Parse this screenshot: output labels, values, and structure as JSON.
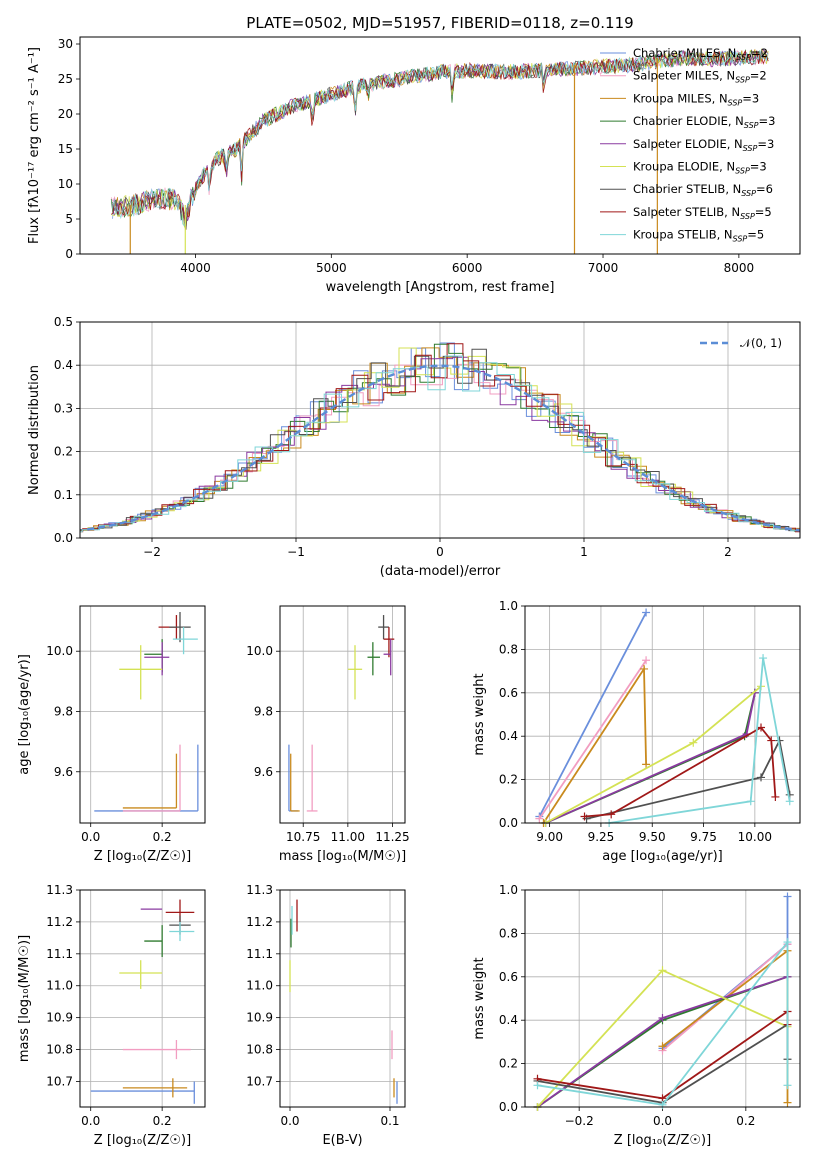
{
  "title": "PLATE=0502, MJD=51957, FIBERID=0118, z=0.119",
  "colors": {
    "chabrier_miles": "#6a8fdc",
    "salpeter_miles": "#f29dc1",
    "kroupa_miles": "#c98a1e",
    "chabrier_elodie": "#2f7a2f",
    "salpeter_elodie": "#8a3aa0",
    "kroupa_elodie": "#d4e254",
    "chabrier_stelib": "#505050",
    "salpeter_stelib": "#a01818",
    "kroupa_stelib": "#7fd6d8"
  },
  "chart_data": [
    {
      "id": "spectrum",
      "type": "line",
      "title": "PLATE=0502, MJD=51957, FIBERID=0118, z=0.119",
      "xlabel": "wavelength [Angstrom, rest frame]",
      "ylabel": "Flux [fλ10⁻¹⁷ erg cm⁻² s⁻¹ A⁻¹]",
      "xlim": [
        3150,
        8450
      ],
      "ylim": [
        0,
        31
      ],
      "xticks": [
        4000,
        5000,
        6000,
        7000,
        8000
      ],
      "yticks": [
        0,
        5,
        10,
        15,
        20,
        25,
        30
      ],
      "grid": false,
      "legend_position": "top-right",
      "legend": [
        {
          "label": "Chabrier MILES, N",
          "sub": "SSP",
          "tail": "=2",
          "color": "#6a8fdc"
        },
        {
          "label": "Salpeter MILES, N",
          "sub": "SSP",
          "tail": "=2",
          "color": "#f29dc1"
        },
        {
          "label": "Kroupa MILES, N",
          "sub": "SSP",
          "tail": "=3",
          "color": "#c98a1e"
        },
        {
          "label": "Chabrier ELODIE, N",
          "sub": "SSP",
          "tail": "=3",
          "color": "#2f7a2f"
        },
        {
          "label": "Salpeter ELODIE, N",
          "sub": "SSP",
          "tail": "=3",
          "color": "#8a3aa0"
        },
        {
          "label": "Kroupa ELODIE, N",
          "sub": "SSP",
          "tail": "=3",
          "color": "#d4e254"
        },
        {
          "label": "Chabrier STELIB, N",
          "sub": "SSP",
          "tail": "=6",
          "color": "#505050"
        },
        {
          "label": "Salpeter STELIB, N",
          "sub": "SSP",
          "tail": "=5",
          "color": "#a01818"
        },
        {
          "label": "Kroupa STELIB, N",
          "sub": "SSP",
          "tail": "=5",
          "color": "#7fd6d8"
        }
      ],
      "continuum": [
        [
          3380,
          6.6
        ],
        [
          3550,
          7
        ],
        [
          3700,
          8
        ],
        [
          3850,
          7.8
        ],
        [
          3930,
          5
        ],
        [
          3970,
          8
        ],
        [
          4050,
          11
        ],
        [
          4150,
          13.5
        ],
        [
          4300,
          15
        ],
        [
          4500,
          19
        ],
        [
          4700,
          21
        ],
        [
          4860,
          22
        ],
        [
          5000,
          22.8
        ],
        [
          5200,
          24
        ],
        [
          5500,
          25
        ],
        [
          5800,
          26
        ],
        [
          6000,
          26.2
        ],
        [
          6300,
          26
        ],
        [
          6600,
          26.3
        ],
        [
          6800,
          26.5
        ],
        [
          7000,
          26.8
        ],
        [
          7200,
          27
        ],
        [
          7400,
          27.5
        ],
        [
          7600,
          28
        ],
        [
          7800,
          27.8
        ],
        [
          8000,
          28
        ],
        [
          8200,
          28.2
        ]
      ],
      "drops": [
        {
          "x": 3520,
          "from": 7,
          "to": 0,
          "color": "#c98a1e"
        },
        {
          "x": 3925,
          "from": 7,
          "to": 0,
          "color": "#d4e254"
        },
        {
          "x": 6790,
          "from": 27,
          "to": 0,
          "color": "#c98a1e"
        },
        {
          "x": 7400,
          "from": 28,
          "to": 0,
          "color": "#c98a1e"
        }
      ]
    },
    {
      "id": "residuals",
      "type": "step",
      "xlabel": "(data-model)/error",
      "ylabel": "Normed distribution",
      "xlim": [
        -2.5,
        2.5
      ],
      "ylim": [
        0,
        0.5
      ],
      "xticks": [
        -2,
        -1,
        0,
        1,
        2
      ],
      "yticks": [
        0.0,
        0.1,
        0.2,
        0.3,
        0.4,
        0.5
      ],
      "grid": true,
      "legend_position": "top-right",
      "reference_label": "𝒩(0, 1)",
      "reference_color": "#5b8dd6"
    },
    {
      "id": "age_vs_Z",
      "type": "errorbar",
      "xlabel": "Z [log₁₀(Z/Z☉)]",
      "ylabel": "age  [log₁₀(age/yr)]",
      "xlim": [
        -0.03,
        0.32
      ],
      "ylim": [
        9.43,
        10.15
      ],
      "xticks": [
        0.0,
        0.2
      ],
      "yticks": [
        9.6,
        9.8,
        10.0
      ],
      "grid": true,
      "points": [
        {
          "x": 0.3,
          "y": 9.47,
          "xerr": [
            0.29,
            0.0
          ],
          "yerr": [
            0.0,
            0.22
          ],
          "color": "#6a8fdc"
        },
        {
          "x": 0.25,
          "y": 9.47,
          "xerr": [
            0.16,
            0.0
          ],
          "yerr": [
            0.0,
            0.22
          ],
          "color": "#f29dc1"
        },
        {
          "x": 0.24,
          "y": 9.48,
          "xerr": [
            0.15,
            0.0
          ],
          "yerr": [
            0.0,
            0.18
          ],
          "color": "#c98a1e"
        },
        {
          "x": 0.24,
          "y": 10.08,
          "xerr": [
            0.05,
            0.0
          ],
          "yerr": [
            0.04,
            0.04
          ],
          "color": "#a01818"
        },
        {
          "x": 0.25,
          "y": 10.08,
          "xerr": [
            0.03,
            0.03
          ],
          "yerr": [
            0.05,
            0.05
          ],
          "color": "#505050"
        },
        {
          "x": 0.26,
          "y": 10.04,
          "xerr": [
            0.03,
            0.04
          ],
          "yerr": [
            0.05,
            0.04
          ],
          "color": "#7fd6d8"
        },
        {
          "x": 0.2,
          "y": 9.99,
          "xerr": [
            0.05,
            0.0
          ],
          "yerr": [
            0.06,
            0.05
          ],
          "color": "#2f7a2f"
        },
        {
          "x": 0.2,
          "y": 9.98,
          "xerr": [
            0.05,
            0.02
          ],
          "yerr": [
            0.06,
            0.05
          ],
          "color": "#8a3aa0"
        },
        {
          "x": 0.14,
          "y": 9.94,
          "xerr": [
            0.06,
            0.06
          ],
          "yerr": [
            0.1,
            0.08
          ],
          "color": "#d4e254"
        }
      ]
    },
    {
      "id": "age_vs_mass",
      "type": "errorbar",
      "xlabel": "mass [log₁₀(M/M☉)]",
      "ylabel": "",
      "xlim": [
        10.62,
        11.32
      ],
      "ylim": [
        9.43,
        10.15
      ],
      "xticks": [
        10.75,
        11.0,
        11.25
      ],
      "yticks": [
        9.6,
        9.8,
        10.0
      ],
      "grid": true,
      "points": [
        {
          "x": 10.67,
          "y": 9.47,
          "xerr": [
            0.0,
            0.05
          ],
          "yerr": [
            0.0,
            0.22
          ],
          "color": "#6a8fdc"
        },
        {
          "x": 10.68,
          "y": 9.47,
          "xerr": [
            0.0,
            0.05
          ],
          "yerr": [
            0.0,
            0.19
          ],
          "color": "#c98a1e"
        },
        {
          "x": 10.8,
          "y": 9.47,
          "xerr": [
            0.03,
            0.03
          ],
          "yerr": [
            0.0,
            0.22
          ],
          "color": "#f29dc1"
        },
        {
          "x": 11.2,
          "y": 10.08,
          "xerr": [
            0.03,
            0.03
          ],
          "yerr": [
            0.04,
            0.04
          ],
          "color": "#505050"
        },
        {
          "x": 11.23,
          "y": 10.04,
          "xerr": [
            0.03,
            0.03
          ],
          "yerr": [
            0.06,
            0.04
          ],
          "color": "#a01818"
        },
        {
          "x": 11.24,
          "y": 9.99,
          "xerr": [
            0.04,
            0.0
          ],
          "yerr": [
            0.07,
            0.05
          ],
          "color": "#8a3aa0"
        },
        {
          "x": 11.14,
          "y": 9.98,
          "xerr": [
            0.03,
            0.04
          ],
          "yerr": [
            0.06,
            0.05
          ],
          "color": "#2f7a2f"
        },
        {
          "x": 11.04,
          "y": 9.94,
          "xerr": [
            0.04,
            0.04
          ],
          "yerr": [
            0.1,
            0.08
          ],
          "color": "#d4e254"
        }
      ]
    },
    {
      "id": "weight_vs_age",
      "type": "line",
      "xlabel": "age  [log₁₀(age/yr)]",
      "ylabel": "mass weight",
      "xlim": [
        8.88,
        10.22
      ],
      "ylim": [
        0,
        1.0
      ],
      "xticks": [
        9.0,
        9.25,
        9.5,
        9.75,
        10.0
      ],
      "yticks": [
        0.0,
        0.2,
        0.4,
        0.6,
        0.8,
        1.0
      ],
      "grid": true,
      "series": [
        {
          "color": "#6a8fdc",
          "x": [
            8.95,
            9.47
          ],
          "y": [
            0.03,
            0.97
          ]
        },
        {
          "color": "#f29dc1",
          "x": [
            8.95,
            9.47
          ],
          "y": [
            0.02,
            0.75
          ]
        },
        {
          "color": "#c98a1e",
          "x": [
            8.97,
            9.46,
            9.47
          ],
          "y": [
            0.0,
            0.71,
            0.27
          ]
        },
        {
          "color": "#2f7a2f",
          "x": [
            8.98,
            9.95,
            10.0
          ],
          "y": [
            0.0,
            0.4,
            0.6
          ]
        },
        {
          "color": "#8a3aa0",
          "x": [
            8.98,
            9.96,
            10.0
          ],
          "y": [
            0.0,
            0.41,
            0.6
          ]
        },
        {
          "color": "#d4e254",
          "x": [
            8.98,
            9.7,
            10.03
          ],
          "y": [
            0.0,
            0.37,
            0.63
          ]
        },
        {
          "color": "#505050",
          "x": [
            9.18,
            10.03,
            10.12,
            10.17
          ],
          "y": [
            0.02,
            0.21,
            0.38,
            0.13
          ]
        },
        {
          "color": "#a01818",
          "x": [
            9.17,
            9.3,
            10.03,
            10.08,
            10.1
          ],
          "y": [
            0.03,
            0.04,
            0.44,
            0.38,
            0.12
          ]
        },
        {
          "color": "#7fd6d8",
          "x": [
            9.29,
            9.98,
            10.04,
            10.17
          ],
          "y": [
            0.0,
            0.1,
            0.76,
            0.1
          ]
        }
      ]
    },
    {
      "id": "mass_vs_Z",
      "type": "errorbar",
      "xlabel": "Z [log₁₀(Z/Z☉)]",
      "ylabel": "mass [log₁₀(M/M☉)]",
      "xlim": [
        -0.03,
        0.32
      ],
      "ylim": [
        10.62,
        11.3
      ],
      "xticks": [
        0.0,
        0.2
      ],
      "yticks": [
        10.7,
        10.8,
        10.9,
        11.0,
        11.1,
        11.2,
        11.3
      ],
      "grid": true,
      "points": [
        {
          "x": 0.29,
          "y": 10.67,
          "xerr": [
            0.29,
            0.0
          ],
          "yerr": [
            0.04,
            0.03
          ],
          "color": "#6a8fdc"
        },
        {
          "x": 0.23,
          "y": 10.68,
          "xerr": [
            0.14,
            0.04
          ],
          "yerr": [
            0.03,
            0.03
          ],
          "color": "#c98a1e"
        },
        {
          "x": 0.24,
          "y": 10.8,
          "xerr": [
            0.15,
            0.04
          ],
          "yerr": [
            0.03,
            0.03
          ],
          "color": "#f29dc1"
        },
        {
          "x": 0.25,
          "y": 11.23,
          "xerr": [
            0.04,
            0.04
          ],
          "yerr": [
            0.03,
            0.04
          ],
          "color": "#a01818"
        },
        {
          "x": 0.25,
          "y": 11.19,
          "xerr": [
            0.03,
            0.03
          ],
          "yerr": [
            0.03,
            0.03
          ],
          "color": "#505050"
        },
        {
          "x": 0.25,
          "y": 11.17,
          "xerr": [
            0.03,
            0.04
          ],
          "yerr": [
            0.03,
            0.03
          ],
          "color": "#7fd6d8"
        },
        {
          "x": 0.2,
          "y": 11.24,
          "xerr": [
            0.06,
            0.0
          ],
          "yerr": [
            0.0,
            0.0
          ],
          "color": "#8a3aa0"
        },
        {
          "x": 0.2,
          "y": 11.14,
          "xerr": [
            0.05,
            0.0
          ],
          "yerr": [
            0.05,
            0.05
          ],
          "color": "#2f7a2f"
        },
        {
          "x": 0.14,
          "y": 11.04,
          "xerr": [
            0.06,
            0.06
          ],
          "yerr": [
            0.05,
            0.04
          ],
          "color": "#d4e254"
        }
      ]
    },
    {
      "id": "mass_vs_ebv",
      "type": "errorbar",
      "xlabel": "E(B-V)",
      "ylabel": "",
      "xlim": [
        -0.01,
        0.115
      ],
      "ylim": [
        10.62,
        11.3
      ],
      "xticks": [
        0.0,
        0.1
      ],
      "yticks": [
        10.7,
        10.8,
        10.9,
        11.0,
        11.1,
        11.2,
        11.3
      ],
      "grid": true,
      "points": [
        {
          "x": 0.107,
          "y": 10.67,
          "xerr": [
            0,
            0
          ],
          "yerr": [
            0.04,
            0.03
          ],
          "color": "#6a8fdc"
        },
        {
          "x": 0.104,
          "y": 10.68,
          "xerr": [
            0,
            0
          ],
          "yerr": [
            0.03,
            0.03
          ],
          "color": "#c98a1e"
        },
        {
          "x": 0.102,
          "y": 10.81,
          "xerr": [
            0,
            0
          ],
          "yerr": [
            0.04,
            0.05
          ],
          "color": "#f29dc1"
        },
        {
          "x": 0.007,
          "y": 11.22,
          "xerr": [
            0,
            0
          ],
          "yerr": [
            0.05,
            0.05
          ],
          "color": "#a01818"
        },
        {
          "x": 0.001,
          "y": 11.17,
          "xerr": [
            0,
            0
          ],
          "yerr": [
            0.05,
            0.04
          ],
          "color": "#2f7a2f"
        },
        {
          "x": 0.002,
          "y": 11.2,
          "xerr": [
            0,
            0
          ],
          "yerr": [
            0.04,
            0.05
          ],
          "color": "#7fd6d8"
        },
        {
          "x": 0.0,
          "y": 11.04,
          "xerr": [
            0,
            0
          ],
          "yerr": [
            0.06,
            0.04
          ],
          "color": "#d4e254"
        }
      ]
    },
    {
      "id": "weight_vs_Z",
      "type": "line",
      "xlabel": "Z [log₁₀(Z/Z☉)]",
      "ylabel": "mass weight",
      "xlim": [
        -0.33,
        0.33
      ],
      "ylim": [
        0,
        1.0
      ],
      "xticks": [
        -0.2,
        0.0,
        0.2
      ],
      "yticks": [
        0.0,
        0.2,
        0.4,
        0.6,
        0.8,
        1.0
      ],
      "grid": true,
      "series": [
        {
          "color": "#6a8fdc",
          "x": [
            0.0,
            0.3,
            0.3
          ],
          "y": [
            0.27,
            0.75,
            0.97
          ]
        },
        {
          "color": "#f29dc1",
          "x": [
            0.0,
            0.3
          ],
          "y": [
            0.26,
            0.75
          ]
        },
        {
          "color": "#c98a1e",
          "x": [
            0.0,
            0.3,
            0.3
          ],
          "y": [
            0.28,
            0.72,
            0.02
          ]
        },
        {
          "color": "#2f7a2f",
          "x": [
            -0.3,
            0.0,
            0.3
          ],
          "y": [
            0.0,
            0.4,
            0.6
          ]
        },
        {
          "color": "#8a3aa0",
          "x": [
            -0.3,
            0.0,
            0.3
          ],
          "y": [
            0.0,
            0.41,
            0.6
          ]
        },
        {
          "color": "#d4e254",
          "x": [
            -0.3,
            0.0,
            0.3
          ],
          "y": [
            0.0,
            0.63,
            0.37
          ]
        },
        {
          "color": "#505050",
          "x": [
            -0.3,
            0.0,
            0.3,
            0.3
          ],
          "y": [
            0.12,
            0.02,
            0.38,
            0.22
          ]
        },
        {
          "color": "#a01818",
          "x": [
            -0.3,
            0.0,
            0.3,
            0.3
          ],
          "y": [
            0.13,
            0.04,
            0.44,
            0.38
          ]
        },
        {
          "color": "#7fd6d8",
          "x": [
            -0.3,
            0.0,
            0.3,
            0.3
          ],
          "y": [
            0.1,
            0.01,
            0.76,
            0.1
          ]
        }
      ]
    }
  ]
}
